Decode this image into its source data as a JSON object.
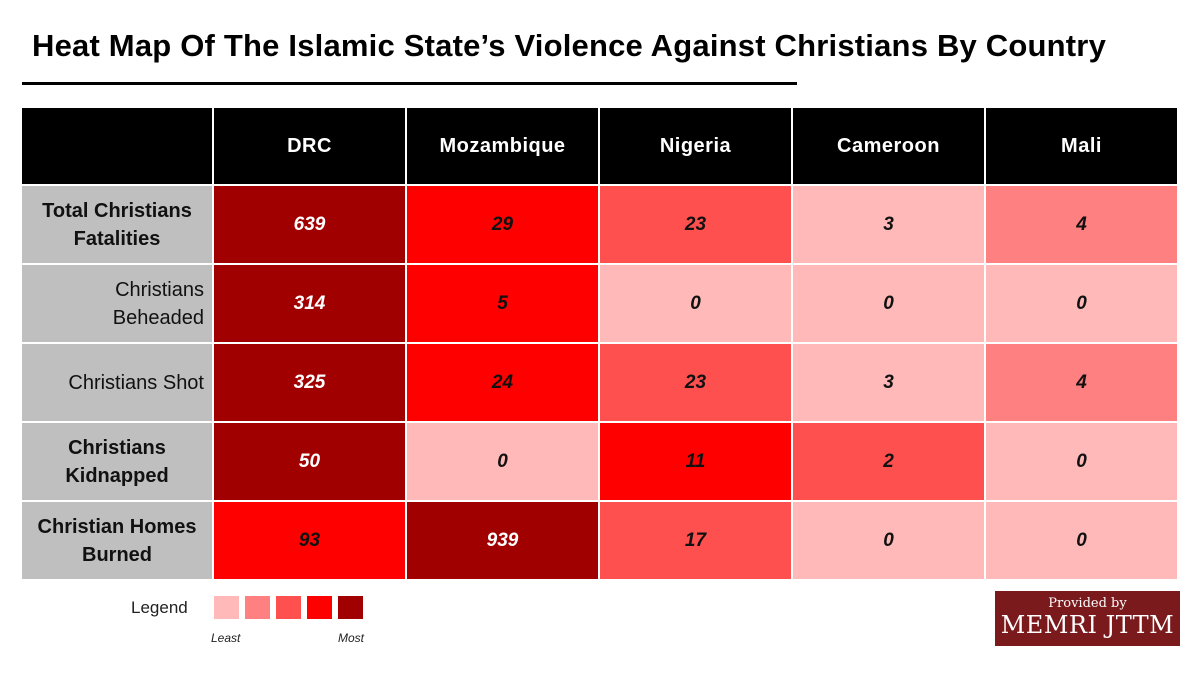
{
  "title": "Heat Map Of The Islamic State’s Violence Against Christians By Country",
  "colors": {
    "level1": "#ffb9b9",
    "level2": "#ff8080",
    "level3": "#ff5050",
    "level4": "#ff0000",
    "level5": "#a00000",
    "header_bg": "#000000",
    "row_header_bg": "#bfbfbf"
  },
  "chart_data": {
    "type": "heatmap",
    "title": "Heat Map Of The Islamic State’s Violence Against Christians By Country",
    "columns": [
      "DRC",
      "Mozambique",
      "Nigeria",
      "Cameroon",
      "Mali"
    ],
    "rows": [
      {
        "label": "Total Christians Fatalities",
        "values": [
          639,
          29,
          23,
          3,
          4
        ],
        "levels": [
          5,
          4,
          3,
          1,
          2
        ]
      },
      {
        "label": "Christians Beheaded",
        "values": [
          314,
          5,
          0,
          0,
          0
        ],
        "levels": [
          5,
          4,
          1,
          1,
          1
        ]
      },
      {
        "label": "Christians Shot",
        "values": [
          325,
          24,
          23,
          3,
          4
        ],
        "levels": [
          5,
          4,
          3,
          1,
          2
        ]
      },
      {
        "label": "Christians Kidnapped",
        "values": [
          50,
          0,
          11,
          2,
          0
        ],
        "levels": [
          5,
          1,
          4,
          3,
          1
        ]
      },
      {
        "label": "Christian Homes Burned",
        "values": [
          93,
          939,
          17,
          0,
          0
        ],
        "levels": [
          4,
          5,
          3,
          1,
          1
        ]
      }
    ]
  },
  "legend": {
    "label": "Legend",
    "least": "Least",
    "most": "Most",
    "levels": [
      1,
      2,
      3,
      4,
      5
    ]
  },
  "logo": {
    "line1": "Provided by",
    "line2": "MEMRI JTTM"
  }
}
